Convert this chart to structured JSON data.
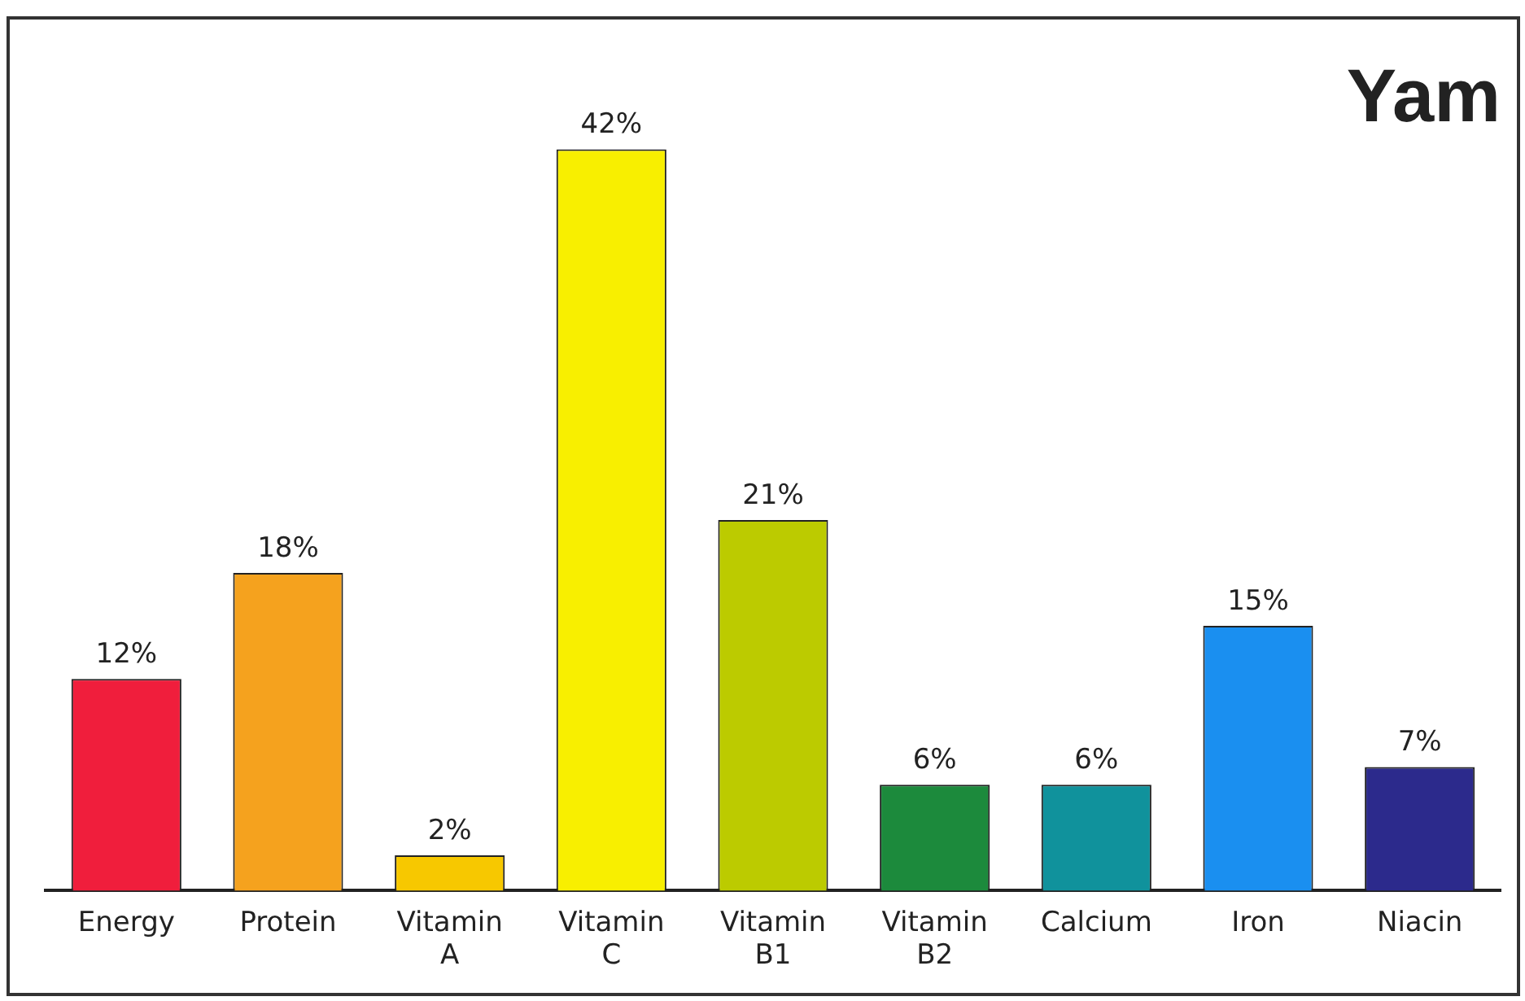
{
  "chart_data": {
    "type": "bar",
    "title": "Yam",
    "categories": [
      "Energy",
      "Protein",
      "Vitamin A",
      "Vitamin C",
      "Vitamin B1",
      "Vitamin B2",
      "Calcium",
      "Iron",
      "Niacin"
    ],
    "values": [
      12,
      18,
      2,
      42,
      21,
      6,
      6,
      15,
      7
    ],
    "value_labels": [
      "12%",
      "18%",
      "2%",
      "42%",
      "21%",
      "6%",
      "6%",
      "15%",
      "7%"
    ],
    "colors": [
      "#f01e3c",
      "#f5a21e",
      "#f7c800",
      "#f8ef00",
      "#bccb00",
      "#1c8a3c",
      "#10929c",
      "#1a8ff0",
      "#2c2a8c"
    ],
    "relative": false,
    "grid": false,
    "legend": false
  }
}
